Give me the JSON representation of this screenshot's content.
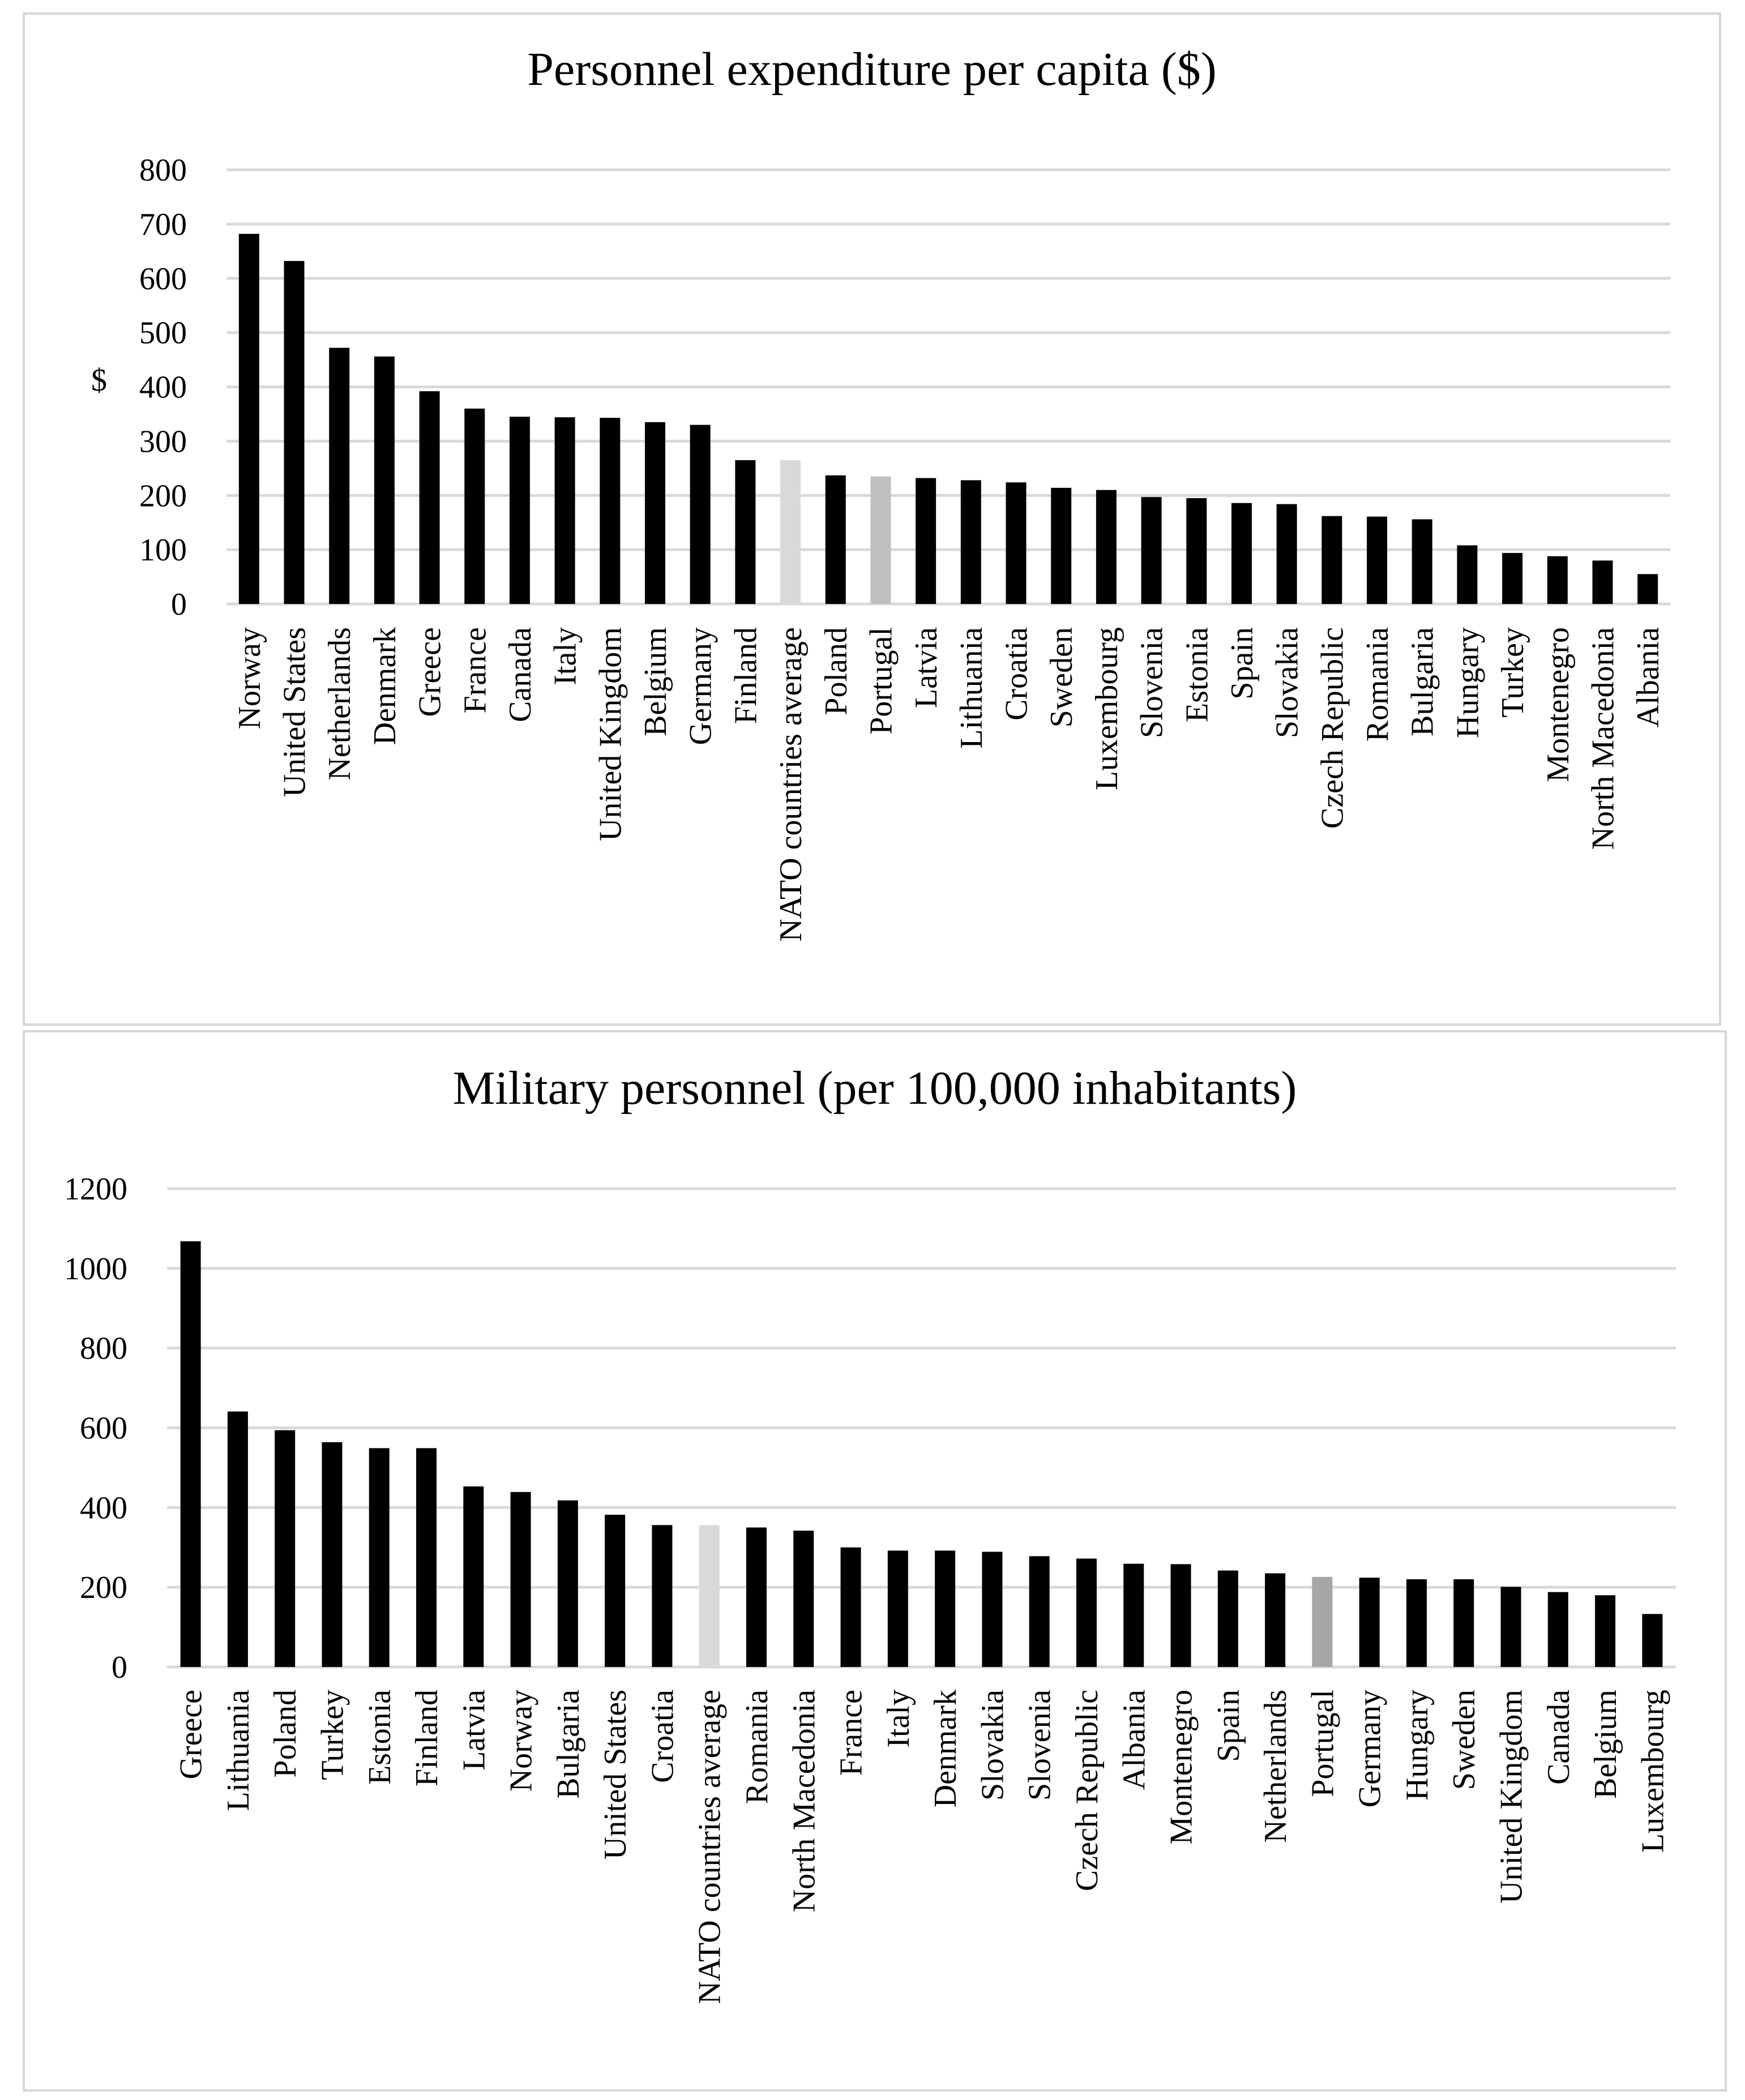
{
  "chart_data": [
    {
      "type": "bar",
      "title": "Personnel expenditure per capita ($)",
      "xlabel": "",
      "ylabel": "$",
      "ylim": [
        0,
        800
      ],
      "yticks": [
        0,
        100,
        200,
        300,
        400,
        500,
        600,
        700,
        800
      ],
      "categories": [
        "Norway",
        "United States",
        "Netherlands",
        "Denmark",
        "Greece",
        "France",
        "Canada",
        "Italy",
        "United Kingdom",
        "Belgium",
        "Germany",
        "Finland",
        "NATO countries average",
        "Poland",
        "Portugal",
        "Latvia",
        "Lithuania",
        "Croatia",
        "Sweden",
        "Luxembourg",
        "Slovenia",
        "Estonia",
        "Spain",
        "Slovakia",
        "Czech Republic",
        "Romania",
        "Bulgaria",
        "Hungary",
        "Turkey",
        "Montenegro",
        "North Macedonia",
        "Albania"
      ],
      "values": [
        682,
        632,
        472,
        456,
        392,
        360,
        345,
        344,
        343,
        335,
        330,
        265,
        265,
        237,
        235,
        232,
        228,
        224,
        214,
        210,
        197,
        195,
        186,
        184,
        162,
        161,
        156,
        108,
        94,
        88,
        80,
        55
      ],
      "colors": [
        "#000000",
        "#000000",
        "#000000",
        "#000000",
        "#000000",
        "#000000",
        "#000000",
        "#000000",
        "#000000",
        "#000000",
        "#000000",
        "#000000",
        "#d9d9d9",
        "#000000",
        "#bfbfbf",
        "#000000",
        "#000000",
        "#000000",
        "#000000",
        "#000000",
        "#000000",
        "#000000",
        "#000000",
        "#000000",
        "#000000",
        "#000000",
        "#000000",
        "#000000",
        "#000000",
        "#000000",
        "#000000",
        "#000000"
      ],
      "grid": true,
      "legend": "none"
    },
    {
      "type": "bar",
      "title": "Military personnel (per 100,000 inhabitants)",
      "xlabel": "",
      "ylabel": "",
      "ylim": [
        0,
        1200
      ],
      "yticks": [
        0,
        200,
        400,
        600,
        800,
        1000,
        1200
      ],
      "categories": [
        "Greece",
        "Lithuania",
        "Poland",
        "Turkey",
        "Estonia",
        "Finland",
        "Latvia",
        "Norway",
        "Bulgaria",
        "United States",
        "Croatia",
        "NATO countries average",
        "Romania",
        "North Macedonia",
        "France",
        "Italy",
        "Denmark",
        "Slovakia",
        "Slovenia",
        "Czech Republic",
        "Albania",
        "Montenegro",
        "Spain",
        "Netherlands",
        "Portugal",
        "Germany",
        "Hungary",
        "Sweden",
        "United Kingdom",
        "Canada",
        "Belgium",
        "Luxembourg"
      ],
      "values": [
        1068,
        641,
        594,
        564,
        549,
        549,
        453,
        439,
        418,
        382,
        356,
        356,
        350,
        342,
        300,
        292,
        292,
        289,
        278,
        272,
        259,
        258,
        242,
        235,
        226,
        224,
        220,
        220,
        201,
        188,
        180,
        133
      ],
      "colors": [
        "#000000",
        "#000000",
        "#000000",
        "#000000",
        "#000000",
        "#000000",
        "#000000",
        "#000000",
        "#000000",
        "#000000",
        "#000000",
        "#d9d9d9",
        "#000000",
        "#000000",
        "#000000",
        "#000000",
        "#000000",
        "#000000",
        "#000000",
        "#000000",
        "#000000",
        "#000000",
        "#000000",
        "#000000",
        "#a6a6a6",
        "#000000",
        "#000000",
        "#000000",
        "#000000",
        "#000000",
        "#000000",
        "#000000"
      ],
      "grid": true,
      "legend": "none"
    }
  ]
}
